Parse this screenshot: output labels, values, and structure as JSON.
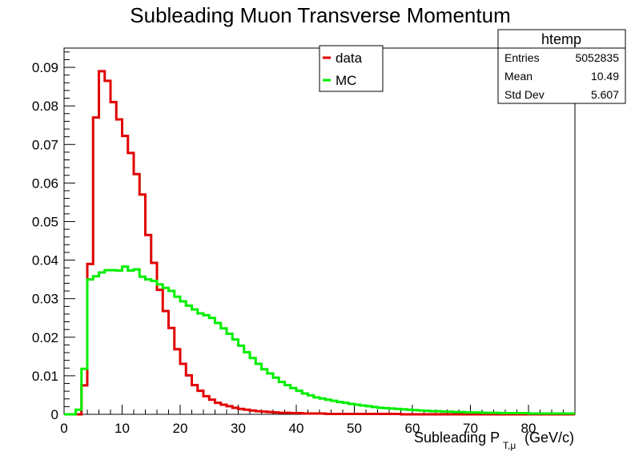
{
  "chart_data": {
    "type": "step-histogram",
    "title": "Subleading Muon Transverse Momentum",
    "xlabel_main": "Subleading P",
    "xlabel_sub": "T,μ",
    "xlabel_unit": "(GeV/c)",
    "ylabel": "",
    "xlim": [
      0,
      88
    ],
    "ylim": [
      0,
      0.095
    ],
    "x_ticks": [
      "0",
      "10",
      "20",
      "30",
      "40",
      "50",
      "60",
      "70",
      "80"
    ],
    "y_ticks": [
      "0",
      "0.01",
      "0.02",
      "0.03",
      "0.04",
      "0.05",
      "0.06",
      "0.07",
      "0.08",
      "0.09"
    ],
    "bin_width": 1,
    "legend": [
      {
        "name": "data",
        "color": "#e00000"
      },
      {
        "name": "MC",
        "color": "#00ee00"
      }
    ],
    "stats": {
      "title": "htemp",
      "rows": [
        {
          "label": "Entries",
          "value": "5052835"
        },
        {
          "label": "Mean",
          "value": "10.49"
        },
        {
          "label": "Std Dev",
          "value": "5.607"
        }
      ]
    },
    "series": [
      {
        "name": "data",
        "color": "#e00000",
        "values": [
          0,
          0,
          0,
          0.0075,
          0.039,
          0.077,
          0.089,
          0.0865,
          0.081,
          0.0765,
          0.0722,
          0.0678,
          0.0623,
          0.057,
          0.0465,
          0.0393,
          0.0323,
          0.0268,
          0.0224,
          0.0169,
          0.0131,
          0.0101,
          0.0076,
          0.0061,
          0.0047,
          0.0038,
          0.003,
          0.0025,
          0.0021,
          0.0017,
          0.0014,
          0.0012,
          0.001,
          0.0008,
          0.0007,
          0.0006,
          0.0005,
          0.0004,
          0.0004,
          0.0003,
          0.0003,
          0.0002,
          0.0002,
          0.0002,
          0.0002,
          0.0001,
          0.0001,
          0.0001,
          0.0001,
          0.0001,
          0.0001,
          0.0001,
          0.0001,
          0.0001,
          0.0001,
          0.0001,
          0.0001,
          0.0001,
          0,
          0,
          0,
          0,
          0,
          0,
          0,
          0,
          0,
          0,
          0,
          0,
          0,
          0,
          0,
          0,
          0,
          0,
          0,
          0,
          0,
          0,
          0,
          0,
          0,
          0,
          0,
          0,
          0,
          0
        ]
      },
      {
        "name": "MC",
        "color": "#00ee00",
        "values": [
          0,
          0,
          0.0012,
          0.0118,
          0.035,
          0.0358,
          0.0368,
          0.0374,
          0.0374,
          0.0373,
          0.0383,
          0.0373,
          0.0376,
          0.0357,
          0.035,
          0.0346,
          0.0337,
          0.0328,
          0.032,
          0.0305,
          0.0293,
          0.0282,
          0.0272,
          0.0262,
          0.0257,
          0.025,
          0.0237,
          0.0223,
          0.0209,
          0.0194,
          0.0178,
          0.0161,
          0.0146,
          0.0131,
          0.0117,
          0.0106,
          0.0095,
          0.0084,
          0.0076,
          0.0068,
          0.0061,
          0.0054,
          0.0049,
          0.0044,
          0.0041,
          0.0038,
          0.0035,
          0.0032,
          0.003,
          0.0027,
          0.0025,
          0.0023,
          0.0021,
          0.0019,
          0.0017,
          0.0016,
          0.0015,
          0.0014,
          0.0013,
          0.0012,
          0.0011,
          0.001,
          0.0009,
          0.0008,
          0.0008,
          0.0007,
          0.0007,
          0.0006,
          0.0006,
          0.0005,
          0.0005,
          0.0005,
          0.0004,
          0.0004,
          0.0004,
          0.0003,
          0.0003,
          0.0003,
          0.0003,
          0.0003,
          0.0002,
          0.0002,
          0.0002,
          0.0002,
          0.0002,
          0.0002,
          0.0002,
          0.0002
        ]
      }
    ]
  }
}
